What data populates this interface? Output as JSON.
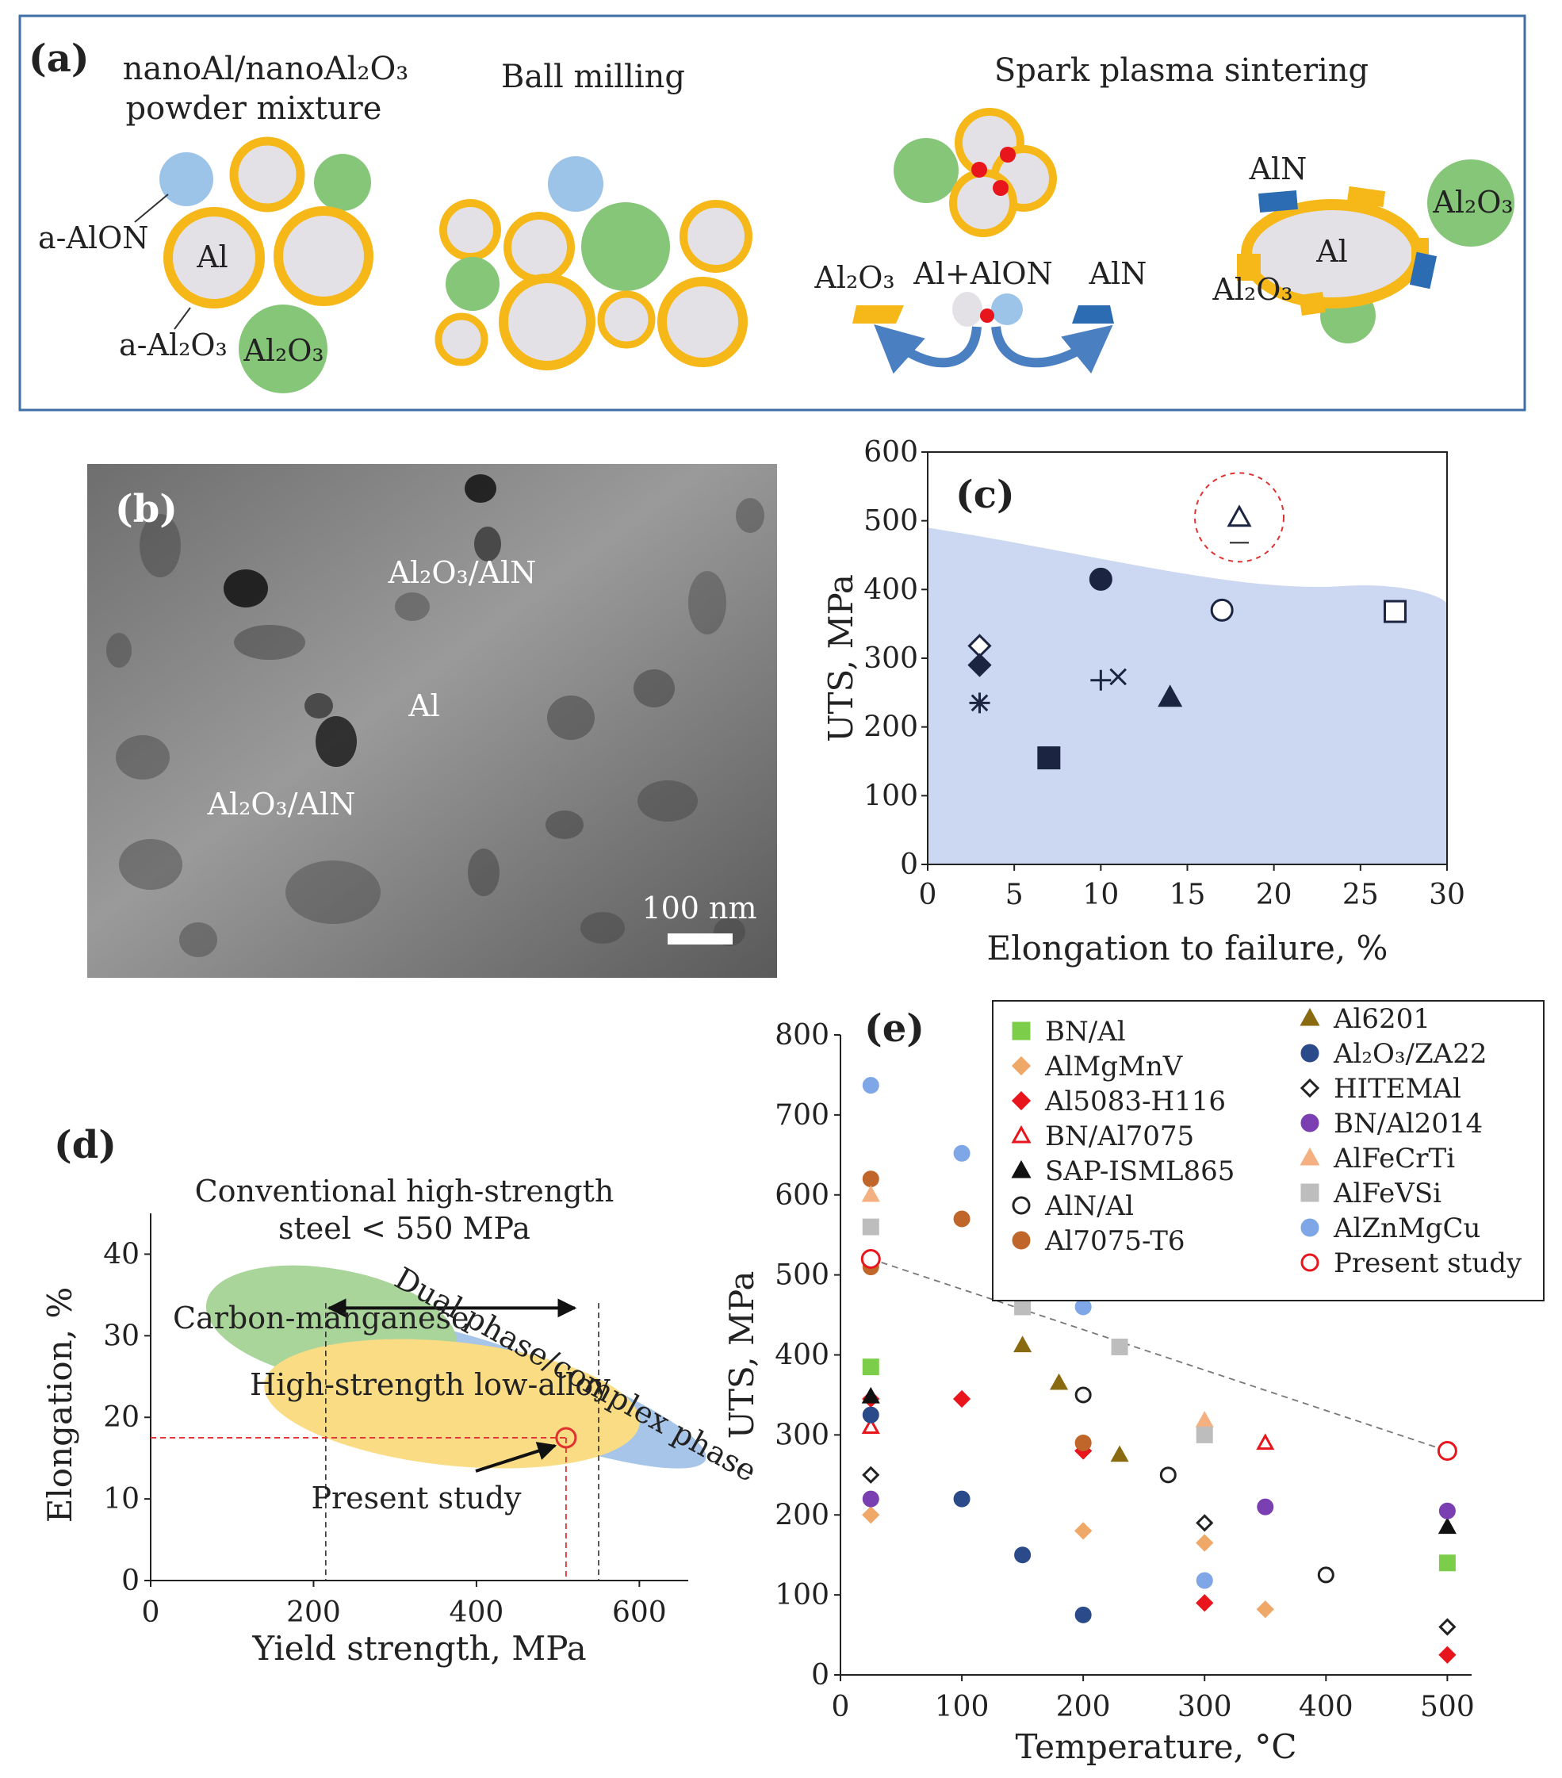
{
  "panel_a": {
    "label": "(a)",
    "captions": [
      "nanoAl/nanoAl₂O₃",
      "powder mixture",
      "Ball milling",
      "Spark plasma sintering"
    ],
    "labels": {
      "a_alon": "a-AlON",
      "al": "Al",
      "a_al2o3": "a-Al₂O₃",
      "al2o3": "Al₂O₃",
      "sps_al2o3": "Al₂O₃",
      "al_alon": "Al+AlON",
      "aln": "AlN",
      "final_aln": "AlN",
      "final_al2o3_right": "Al₂O₃",
      "final_al": "Al",
      "final_al2o3_left": "Al₂O₃"
    }
  },
  "panel_b": {
    "label": "(b)",
    "labels": [
      "Al₂O₃/AlN",
      "Al",
      "Al₂O₃/AlN"
    ],
    "scale_bar": "100 nm"
  },
  "colors": {
    "al_core": "#e3e1e6",
    "amorphous_shell": "#f5b818",
    "alumina": "#86c679",
    "alon": "#9cc3e8",
    "aln": "#2b6cb2",
    "region_c": "#ccd8f1",
    "cmn": "#a9d49a",
    "hsla": "#f9dc83",
    "dual_phase": "#a6c5e9",
    "present": "#e03030"
  },
  "chart_data": [
    {
      "panel": "(c)",
      "type": "scatter",
      "xlabel": "Elongation to failure, %",
      "ylabel": "UTS, MPa",
      "xlim": [
        0,
        30
      ],
      "ylim": [
        0,
        600
      ],
      "xticks": [
        "0",
        "5",
        "10",
        "15",
        "20",
        "25",
        "30"
      ],
      "yticks": [
        "0",
        "100",
        "200",
        "300",
        "400",
        "500",
        "600"
      ],
      "points": [
        {
          "marker": "triangle-open",
          "x": 18,
          "y": 505,
          "highlight": true
        },
        {
          "marker": "circle-filled",
          "x": 10,
          "y": 415
        },
        {
          "marker": "circle-open",
          "x": 17,
          "y": 370
        },
        {
          "marker": "square-open",
          "x": 27,
          "y": 368
        },
        {
          "marker": "diamond-open",
          "x": 3,
          "y": 318
        },
        {
          "marker": "diamond-filled",
          "x": 3,
          "y": 290
        },
        {
          "marker": "plus",
          "x": 10,
          "y": 268
        },
        {
          "marker": "cross",
          "x": 11,
          "y": 273
        },
        {
          "marker": "asterisk",
          "x": 3,
          "y": 235
        },
        {
          "marker": "triangle-filled",
          "x": 14,
          "y": 243
        },
        {
          "marker": "square-filled",
          "x": 7,
          "y": 155
        }
      ]
    },
    {
      "panel": "(d)",
      "type": "scatter",
      "xlabel": "Yield strength, MPa",
      "ylabel": "Elongation, %",
      "xlim": [
        0,
        660
      ],
      "ylim": [
        0,
        45
      ],
      "xticks": [
        "0",
        "200",
        "400",
        "600"
      ],
      "yticks": [
        "0",
        "10",
        "20",
        "30",
        "40"
      ],
      "regions": [
        "Carbon-manganese",
        "High-strength low-alloy",
        "Dual phase/complex phase"
      ],
      "annotation": [
        "Conventional high-strength",
        "steel < 550 MPa"
      ],
      "range_x": [
        215,
        550
      ],
      "present_label": "Present study",
      "present": {
        "x": 510,
        "y": 17.5
      }
    },
    {
      "panel": "(e)",
      "type": "scatter",
      "xlabel": "Temperature, °C",
      "ylabel": "UTS, MPa",
      "xlim": [
        0,
        520
      ],
      "ylim": [
        0,
        800
      ],
      "xticks": [
        "0",
        "100",
        "200",
        "300",
        "400",
        "500"
      ],
      "yticks": [
        "0",
        "100",
        "200",
        "300",
        "400",
        "500",
        "600",
        "700",
        "800"
      ],
      "trend": [
        [
          25,
          520
        ],
        [
          500,
          280
        ]
      ],
      "series": [
        {
          "name": "BN/Al",
          "marker": "square",
          "color": "#7ccd4a",
          "points": [
            [
              25,
              385
            ],
            [
              500,
              140
            ]
          ]
        },
        {
          "name": "AlMgMnV",
          "marker": "diamond",
          "color": "#f0a868",
          "points": [
            [
              25,
              200
            ],
            [
              200,
              180
            ],
            [
              300,
              165
            ],
            [
              350,
              82
            ]
          ]
        },
        {
          "name": "Al5083-H116",
          "marker": "diamond",
          "color": "#e8161c",
          "points": [
            [
              25,
              345
            ],
            [
              100,
              345
            ],
            [
              200,
              280
            ],
            [
              300,
              90
            ],
            [
              500,
              25
            ]
          ]
        },
        {
          "name": "BN/Al7075",
          "marker": "triangle-open",
          "color": "#e8161c",
          "points": [
            [
              25,
              310
            ],
            [
              350,
              290
            ]
          ]
        },
        {
          "name": "SAP-ISML865",
          "marker": "triangle",
          "color": "#111111",
          "points": [
            [
              25,
              348
            ],
            [
              500,
              185
            ]
          ]
        },
        {
          "name": "AlN/Al",
          "marker": "circle-open",
          "color": "#222222",
          "points": [
            [
              200,
              350
            ],
            [
              270,
              250
            ],
            [
              400,
              125
            ]
          ]
        },
        {
          "name": "Al7075-T6",
          "marker": "circle",
          "color": "#c0662a",
          "points": [
            [
              25,
              620
            ],
            [
              25,
              510
            ],
            [
              100,
              570
            ],
            [
              200,
              290
            ]
          ]
        },
        {
          "name": "Al6201",
          "marker": "triangle",
          "color": "#8a6a10",
          "points": [
            [
              150,
              412
            ],
            [
              180,
              365
            ],
            [
              230,
              275
            ]
          ]
        },
        {
          "name": "Al₂O₃/ZA22",
          "marker": "circle",
          "color": "#2b4a8a",
          "points": [
            [
              25,
              325
            ],
            [
              100,
              220
            ],
            [
              150,
              150
            ],
            [
              200,
              75
            ]
          ]
        },
        {
          "name": "HITEMAl",
          "marker": "diamond-open",
          "color": "#222222",
          "points": [
            [
              25,
              250
            ],
            [
              300,
              190
            ],
            [
              500,
              60
            ]
          ]
        },
        {
          "name": "BN/Al2014",
          "marker": "circle",
          "color": "#7a3fb0",
          "points": [
            [
              25,
              220
            ],
            [
              350,
              210
            ],
            [
              500,
              205
            ]
          ]
        },
        {
          "name": "AlFeCrTi",
          "marker": "triangle",
          "color": "#f4b080",
          "points": [
            [
              25,
              600
            ],
            [
              300,
              318
            ]
          ]
        },
        {
          "name": "AlFeVSi",
          "marker": "square",
          "color": "#bdbdbd",
          "points": [
            [
              25,
              560
            ],
            [
              150,
              460
            ],
            [
              230,
              410
            ],
            [
              300,
              300
            ]
          ]
        },
        {
          "name": "AlZnMgCu",
          "marker": "circle",
          "color": "#7fa6e6",
          "points": [
            [
              25,
              737
            ],
            [
              100,
              652
            ],
            [
              200,
              460
            ],
            [
              300,
              118
            ]
          ]
        },
        {
          "name": "Present study",
          "marker": "circle-open",
          "color": "#e8161c",
          "points": [
            [
              25,
              520
            ],
            [
              500,
              280
            ]
          ]
        }
      ]
    }
  ]
}
